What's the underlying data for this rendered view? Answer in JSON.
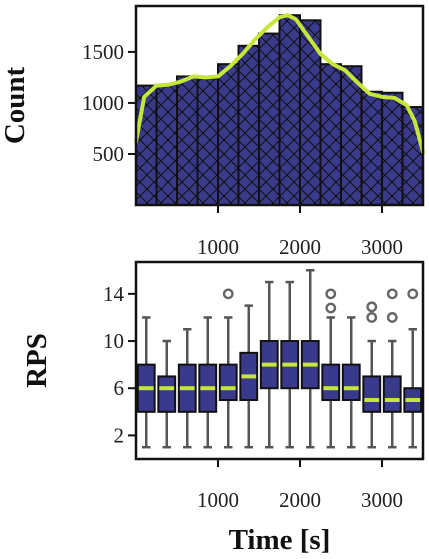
{
  "colors": {
    "bar_fill": "#3a3a8c",
    "edge": "#111111",
    "kde_line": "#c5e63b",
    "whisker": "#555555",
    "median": "#c5e63b",
    "outlier": "#666666"
  },
  "chart_data": [
    {
      "type": "bar",
      "subtype": "histogram",
      "hatch": "cross-diagonal",
      "ylabel": "Count",
      "xlim": [
        0,
        3500
      ],
      "ylim": [
        0,
        1950
      ],
      "xticks": [
        "1000",
        "2000",
        "3000"
      ],
      "yticks": [
        "500",
        "1000",
        "1500"
      ],
      "xtick_values": [
        1000,
        2000,
        3000
      ],
      "ytick_values": [
        500,
        1000,
        1500
      ],
      "bin_edges": [
        0,
        250,
        500,
        750,
        1000,
        1250,
        1500,
        1750,
        2000,
        2250,
        2500,
        2750,
        3000,
        3250,
        3500
      ],
      "values": [
        1170,
        1180,
        1260,
        1240,
        1380,
        1560,
        1680,
        1860,
        1810,
        1380,
        1360,
        1110,
        1100,
        960
      ],
      "kde": {
        "x": [
          0,
          100,
          250,
          400,
          550,
          700,
          850,
          1000,
          1150,
          1300,
          1450,
          1600,
          1750,
          1850,
          1950,
          2100,
          2250,
          2400,
          2550,
          2700,
          2850,
          3000,
          3150,
          3300,
          3400,
          3500
        ],
        "y": [
          620,
          1060,
          1170,
          1180,
          1210,
          1260,
          1250,
          1260,
          1360,
          1480,
          1620,
          1740,
          1840,
          1860,
          1820,
          1650,
          1480,
          1380,
          1320,
          1200,
          1090,
          1060,
          1050,
          980,
          820,
          520
        ]
      }
    },
    {
      "type": "box",
      "xlabel": "Time [s]",
      "ylabel": "RPS",
      "xlim": [
        0,
        3500
      ],
      "ylim": [
        0,
        16.7
      ],
      "xticks": [
        "1000",
        "2000",
        "3000"
      ],
      "yticks": [
        "2",
        "6",
        "10",
        "14"
      ],
      "xtick_values": [
        1000,
        2000,
        3000
      ],
      "ytick_values": [
        2,
        6,
        10,
        14
      ],
      "boxes": [
        {
          "x": 125,
          "whislo": 1,
          "q1": 4,
          "med": 6,
          "q3": 8,
          "whishi": 12,
          "fliers": []
        },
        {
          "x": 375,
          "whislo": 1,
          "q1": 4,
          "med": 6,
          "q3": 7,
          "whishi": 10,
          "fliers": []
        },
        {
          "x": 625,
          "whislo": 1,
          "q1": 4,
          "med": 6,
          "q3": 8,
          "whishi": 11,
          "fliers": []
        },
        {
          "x": 875,
          "whislo": 1,
          "q1": 4,
          "med": 6,
          "q3": 8,
          "whishi": 12,
          "fliers": []
        },
        {
          "x": 1125,
          "whislo": 1,
          "q1": 5,
          "med": 6,
          "q3": 8,
          "whishi": 12,
          "fliers": [
            14
          ]
        },
        {
          "x": 1375,
          "whislo": 1,
          "q1": 5,
          "med": 7,
          "q3": 9,
          "whishi": 13,
          "fliers": []
        },
        {
          "x": 1625,
          "whislo": 1,
          "q1": 6,
          "med": 8,
          "q3": 10,
          "whishi": 15,
          "fliers": []
        },
        {
          "x": 1875,
          "whislo": 1,
          "q1": 6,
          "med": 8,
          "q3": 10,
          "whishi": 15,
          "fliers": []
        },
        {
          "x": 2125,
          "whislo": 1,
          "q1": 6,
          "med": 8,
          "q3": 10,
          "whishi": 16,
          "fliers": []
        },
        {
          "x": 2375,
          "whislo": 1,
          "q1": 5,
          "med": 6,
          "q3": 8,
          "whishi": 12,
          "fliers": [
            14,
            12.8
          ]
        },
        {
          "x": 2625,
          "whislo": 1,
          "q1": 5,
          "med": 6,
          "q3": 8,
          "whishi": 12,
          "fliers": []
        },
        {
          "x": 2875,
          "whislo": 1,
          "q1": 4,
          "med": 5,
          "q3": 7,
          "whishi": 10,
          "fliers": [
            12.9,
            12
          ]
        },
        {
          "x": 3125,
          "whislo": 1,
          "q1": 4,
          "med": 5,
          "q3": 7,
          "whishi": 10,
          "fliers": [
            14,
            12
          ]
        },
        {
          "x": 3375,
          "whislo": 1,
          "q1": 4,
          "med": 5,
          "q3": 6,
          "whishi": 11,
          "fliers": [
            14
          ]
        }
      ]
    }
  ]
}
